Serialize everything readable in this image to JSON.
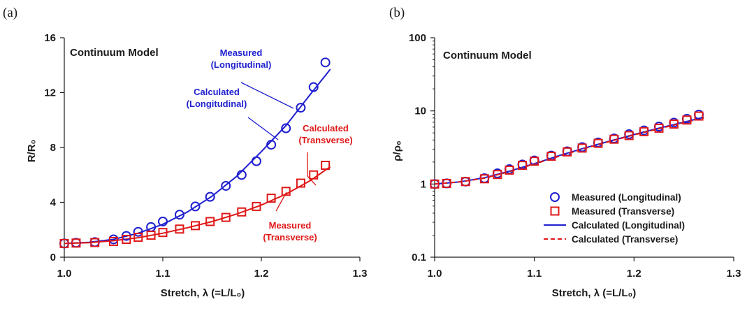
{
  "chart_data": [
    {
      "panel_label": "(a)",
      "type": "scatter",
      "annotation": "Continuum Model",
      "ylabel": "R/R₀",
      "xlabel": "Stretch, λ (=L/L₀)",
      "xlim": [
        1.0,
        1.3
      ],
      "ylim": [
        0,
        16
      ],
      "xticks": [
        "1.0",
        "1.1",
        "1.2",
        "1.3"
      ],
      "yticks": [
        "0",
        "4",
        "8",
        "12",
        "16"
      ],
      "y_scale": "linear",
      "grid": false,
      "series": [
        {
          "name": "Measured (Longitudinal)",
          "kind": "marker-circle",
          "color": "#1f1fd0",
          "x": [
            1.0,
            1.012,
            1.031,
            1.05,
            1.063,
            1.075,
            1.088,
            1.1,
            1.117,
            1.133,
            1.148,
            1.164,
            1.18,
            1.195,
            1.21,
            1.225,
            1.24,
            1.253,
            1.265
          ],
          "y": [
            1.0,
            1.05,
            1.1,
            1.3,
            1.55,
            1.85,
            2.2,
            2.6,
            3.1,
            3.7,
            4.4,
            5.2,
            6.0,
            7.0,
            8.2,
            9.4,
            10.9,
            12.4,
            14.2
          ]
        },
        {
          "name": "Measured (Transverse)",
          "kind": "marker-square",
          "color": "#e01818",
          "x": [
            1.0,
            1.012,
            1.031,
            1.05,
            1.063,
            1.075,
            1.088,
            1.1,
            1.117,
            1.133,
            1.148,
            1.164,
            1.18,
            1.195,
            1.21,
            1.225,
            1.24,
            1.253,
            1.265
          ],
          "y": [
            1.0,
            1.03,
            1.07,
            1.15,
            1.3,
            1.45,
            1.6,
            1.8,
            2.05,
            2.3,
            2.6,
            2.9,
            3.3,
            3.7,
            4.3,
            4.8,
            5.4,
            6.0,
            6.7
          ]
        },
        {
          "name": "Calculated (Longitudinal)",
          "kind": "line-solid",
          "color": "#1f1fd0",
          "x": [
            1.0,
            1.025,
            1.05,
            1.075,
            1.1,
            1.125,
            1.15,
            1.175,
            1.2,
            1.225,
            1.25,
            1.27
          ],
          "y": [
            1.0,
            1.08,
            1.3,
            1.75,
            2.4,
            3.3,
            4.45,
            5.9,
            7.7,
            9.6,
            11.9,
            13.7
          ]
        },
        {
          "name": "Calculated (Transverse)",
          "kind": "line-solid",
          "color": "#e01818",
          "x": [
            1.0,
            1.025,
            1.05,
            1.075,
            1.1,
            1.125,
            1.15,
            1.175,
            1.2,
            1.225,
            1.25,
            1.27
          ],
          "y": [
            1.0,
            1.06,
            1.2,
            1.42,
            1.75,
            2.15,
            2.6,
            3.15,
            3.8,
            4.6,
            5.6,
            6.6
          ]
        }
      ],
      "labels": [
        {
          "text": [
            "Measured",
            "(Longitudinal)"
          ],
          "color": "#1f1fd0"
        },
        {
          "text": [
            "Calculated",
            "(Longitudinal)"
          ],
          "color": "#1f1fd0"
        },
        {
          "text": [
            "Calculated",
            "(Transverse)"
          ],
          "color": "#e01818"
        },
        {
          "text": [
            "Measured",
            "(Transverse)"
          ],
          "color": "#e01818"
        }
      ]
    },
    {
      "panel_label": "(b)",
      "type": "scatter",
      "annotation": "Continuum Model",
      "ylabel": "ρ/ρ₀",
      "xlabel": "Stretch, λ (=L/L₀)",
      "xlim": [
        1.0,
        1.3
      ],
      "ylim": [
        0.1,
        100
      ],
      "xticks": [
        "1.0",
        "1.1",
        "1.2",
        "1.3"
      ],
      "yticks": [
        "0.1",
        "1",
        "10",
        "100"
      ],
      "y_scale": "log",
      "grid": false,
      "legend_position": "bottom-right",
      "series": [
        {
          "name": "Measured (Longitudinal)",
          "kind": "marker-circle",
          "color": "#1f1fd0",
          "x": [
            1.0,
            1.012,
            1.031,
            1.05,
            1.063,
            1.075,
            1.088,
            1.1,
            1.117,
            1.133,
            1.148,
            1.164,
            1.18,
            1.195,
            1.21,
            1.225,
            1.24,
            1.253,
            1.265
          ],
          "y": [
            1.0,
            1.02,
            1.08,
            1.2,
            1.4,
            1.6,
            1.85,
            2.1,
            2.45,
            2.8,
            3.2,
            3.7,
            4.2,
            4.8,
            5.4,
            6.1,
            6.9,
            7.8,
            8.9
          ]
        },
        {
          "name": "Measured (Transverse)",
          "kind": "marker-square",
          "color": "#e01818",
          "x": [
            1.0,
            1.012,
            1.031,
            1.05,
            1.063,
            1.075,
            1.088,
            1.1,
            1.117,
            1.133,
            1.148,
            1.164,
            1.18,
            1.195,
            1.21,
            1.225,
            1.24,
            1.253,
            1.265
          ],
          "y": [
            1.0,
            1.02,
            1.08,
            1.18,
            1.35,
            1.55,
            1.8,
            2.05,
            2.4,
            2.75,
            3.1,
            3.6,
            4.1,
            4.6,
            5.2,
            5.8,
            6.6,
            7.5,
            8.5
          ]
        },
        {
          "name": "Calculated (Longitudinal)",
          "kind": "line-solid",
          "color": "#1f1fd0",
          "x": [
            1.0,
            1.025,
            1.05,
            1.075,
            1.1,
            1.125,
            1.15,
            1.175,
            1.2,
            1.225,
            1.25,
            1.27
          ],
          "y": [
            1.0,
            1.07,
            1.22,
            1.5,
            1.9,
            2.45,
            3.1,
            3.85,
            4.75,
            5.8,
            7.0,
            8.2
          ]
        },
        {
          "name": "Calculated (Transverse)",
          "kind": "line-dashed",
          "color": "#e01818",
          "x": [
            1.0,
            1.025,
            1.05,
            1.075,
            1.1,
            1.125,
            1.15,
            1.175,
            1.2,
            1.225,
            1.25,
            1.27
          ],
          "y": [
            1.0,
            1.07,
            1.2,
            1.48,
            1.88,
            2.4,
            3.05,
            3.8,
            4.7,
            5.7,
            6.9,
            8.0
          ]
        }
      ]
    }
  ]
}
